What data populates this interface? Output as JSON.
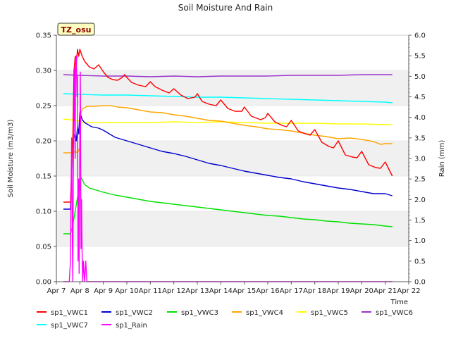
{
  "chart_data": {
    "type": "line",
    "title": "Soil Moisture And Rain",
    "xlabel": "Time",
    "ylabel": "Soil Moisture (m3/m3)",
    "y2label": "Rain (mm)",
    "site_badge": "TZ_osu",
    "x_tick_labels": [
      "Apr 7",
      "Apr 8",
      "Apr 9",
      "Apr 10",
      "Apr 11",
      "Apr 12",
      "Apr 13",
      "Apr 14",
      "Apr 15",
      "Apr 16",
      "Apr 17",
      "Apr 18",
      "Apr 19",
      "Apr 20",
      "Apr 21",
      "Apr 22"
    ],
    "xlim": [
      7,
      22
    ],
    "ylim": [
      0,
      0.35
    ],
    "y_ticks": [
      0.0,
      0.05,
      0.1,
      0.15,
      0.2,
      0.25,
      0.3,
      0.35
    ],
    "y_tick_labels": [
      "0.00",
      "0.05",
      "0.10",
      "0.15",
      "0.20",
      "0.25",
      "0.30",
      "0.35"
    ],
    "y2lim": [
      0,
      6.0
    ],
    "y2_ticks": [
      0,
      0.5,
      1.0,
      1.5,
      2.0,
      2.5,
      3.0,
      3.5,
      4.0,
      4.5,
      5.0,
      5.5,
      6.0
    ],
    "y2_tick_labels": [
      "0.0",
      "0.5",
      "1.0",
      "1.5",
      "2.0",
      "2.5",
      "3.0",
      "3.5",
      "4.0",
      "4.5",
      "5.0",
      "5.5",
      "6.0"
    ],
    "grid": "horizontal bands",
    "legend_position": "bottom",
    "series": [
      {
        "name": "sp1_VWC1",
        "color": "#ff0000",
        "axis": "left",
        "x": [
          7.3,
          7.6,
          7.7,
          7.75,
          7.8,
          7.85,
          7.9,
          7.95,
          8.0,
          8.05,
          8.1,
          8.2,
          8.4,
          8.6,
          8.8,
          9.0,
          9.2,
          9.4,
          9.6,
          9.8,
          9.9,
          10.0,
          10.2,
          10.5,
          10.8,
          11.0,
          11.2,
          11.5,
          11.8,
          12.0,
          12.3,
          12.6,
          12.9,
          13.0,
          13.2,
          13.5,
          13.8,
          14.0,
          14.3,
          14.6,
          14.9,
          15.0,
          15.3,
          15.7,
          15.9,
          16.0,
          16.3,
          16.6,
          16.8,
          17.0,
          17.3,
          17.6,
          17.8,
          18.0,
          18.3,
          18.6,
          18.8,
          19.0,
          19.3,
          19.6,
          19.8,
          20.0,
          20.3,
          20.6,
          20.8,
          21.0,
          21.3
        ],
        "y": [
          0.113,
          0.113,
          0.2,
          0.3,
          0.32,
          0.31,
          0.33,
          0.32,
          0.33,
          0.325,
          0.32,
          0.313,
          0.305,
          0.302,
          0.308,
          0.298,
          0.29,
          0.287,
          0.286,
          0.29,
          0.294,
          0.29,
          0.283,
          0.279,
          0.277,
          0.284,
          0.277,
          0.272,
          0.268,
          0.274,
          0.265,
          0.26,
          0.262,
          0.267,
          0.256,
          0.252,
          0.25,
          0.258,
          0.246,
          0.242,
          0.242,
          0.248,
          0.235,
          0.23,
          0.233,
          0.239,
          0.227,
          0.222,
          0.22,
          0.229,
          0.214,
          0.21,
          0.208,
          0.216,
          0.198,
          0.192,
          0.19,
          0.2,
          0.18,
          0.177,
          0.176,
          0.185,
          0.166,
          0.162,
          0.161,
          0.17,
          0.15
        ]
      },
      {
        "name": "sp1_VWC2",
        "color": "#0000cc",
        "axis": "left",
        "x": [
          7.3,
          7.6,
          7.7,
          7.75,
          7.8,
          7.85,
          7.9,
          7.95,
          8.0,
          8.05,
          8.1,
          8.2,
          8.5,
          8.8,
          9.0,
          9.5,
          10.0,
          10.5,
          11.0,
          11.5,
          12.0,
          12.5,
          13.0,
          13.5,
          14.0,
          14.5,
          15.0,
          15.5,
          16.0,
          16.5,
          17.0,
          17.5,
          18.0,
          18.5,
          19.0,
          19.5,
          20.0,
          20.5,
          21.0,
          21.3
        ],
        "y": [
          0.103,
          0.103,
          0.2,
          0.205,
          0.21,
          0.2,
          0.22,
          0.21,
          0.24,
          0.235,
          0.23,
          0.226,
          0.22,
          0.218,
          0.215,
          0.205,
          0.2,
          0.195,
          0.19,
          0.185,
          0.182,
          0.178,
          0.173,
          0.168,
          0.165,
          0.161,
          0.157,
          0.154,
          0.151,
          0.148,
          0.146,
          0.142,
          0.139,
          0.136,
          0.133,
          0.131,
          0.128,
          0.125,
          0.125,
          0.122
        ]
      },
      {
        "name": "sp1_VWC3",
        "color": "#00e000",
        "axis": "left",
        "x": [
          7.3,
          7.6,
          7.7,
          7.8,
          7.9,
          8.0,
          8.05,
          8.1,
          8.2,
          8.4,
          8.7,
          9.0,
          9.5,
          10.0,
          10.5,
          11.0,
          11.5,
          12.0,
          12.5,
          13.0,
          13.5,
          14.0,
          14.5,
          15.0,
          15.5,
          16.0,
          16.5,
          17.0,
          17.5,
          18.0,
          18.5,
          19.0,
          19.5,
          20.0,
          20.5,
          21.0,
          21.3
        ],
        "y": [
          0.068,
          0.068,
          0.08,
          0.1,
          0.12,
          0.13,
          0.148,
          0.145,
          0.138,
          0.133,
          0.13,
          0.127,
          0.123,
          0.12,
          0.117,
          0.114,
          0.112,
          0.11,
          0.108,
          0.106,
          0.104,
          0.102,
          0.1,
          0.098,
          0.096,
          0.094,
          0.093,
          0.091,
          0.089,
          0.088,
          0.086,
          0.085,
          0.083,
          0.082,
          0.081,
          0.079,
          0.078
        ]
      },
      {
        "name": "sp1_VWC4",
        "color": "#ffa500",
        "axis": "left",
        "x": [
          7.3,
          7.6,
          7.7,
          7.8,
          7.9,
          8.0,
          8.05,
          8.1,
          8.3,
          8.6,
          9.0,
          9.3,
          9.6,
          10.0,
          10.5,
          11.0,
          11.5,
          12.0,
          12.5,
          13.0,
          13.5,
          14.0,
          14.5,
          15.0,
          15.5,
          16.0,
          16.5,
          17.0,
          17.5,
          18.0,
          18.5,
          19.0,
          19.5,
          20.0,
          20.5,
          20.8,
          21.0,
          21.3
        ],
        "y": [
          0.183,
          0.183,
          0.183,
          0.185,
          0.183,
          0.19,
          0.24,
          0.245,
          0.249,
          0.249,
          0.25,
          0.25,
          0.248,
          0.247,
          0.244,
          0.241,
          0.24,
          0.237,
          0.235,
          0.232,
          0.229,
          0.228,
          0.225,
          0.222,
          0.22,
          0.217,
          0.216,
          0.214,
          0.211,
          0.208,
          0.206,
          0.203,
          0.204,
          0.202,
          0.199,
          0.195,
          0.196,
          0.196
        ]
      },
      {
        "name": "sp1_VWC5",
        "color": "#ffff00",
        "axis": "left",
        "x": [
          7.3,
          7.6,
          7.8,
          8.0,
          8.1,
          8.5,
          9.0,
          10.0,
          11.0,
          12.0,
          13.0,
          14.0,
          15.0,
          16.0,
          17.0,
          18.0,
          19.0,
          20.0,
          21.0,
          21.3
        ],
        "y": [
          0.231,
          0.23,
          0.229,
          0.228,
          0.226,
          0.226,
          0.226,
          0.226,
          0.226,
          0.227,
          0.226,
          0.227,
          0.226,
          0.225,
          0.225,
          0.225,
          0.224,
          0.224,
          0.223,
          0.223
        ]
      },
      {
        "name": "sp1_VWC6",
        "color": "#9933cc",
        "axis": "left",
        "x": [
          7.3,
          8.0,
          9.0,
          10.0,
          11.0,
          12.0,
          13.0,
          14.0,
          15.0,
          16.0,
          17.0,
          18.0,
          19.0,
          20.0,
          21.0,
          21.3
        ],
        "y": [
          0.294,
          0.293,
          0.292,
          0.292,
          0.291,
          0.292,
          0.291,
          0.292,
          0.292,
          0.292,
          0.293,
          0.293,
          0.293,
          0.294,
          0.294,
          0.294
        ]
      },
      {
        "name": "sp1_VWC7",
        "color": "#00ffff",
        "axis": "left",
        "x": [
          7.3,
          8.0,
          9.0,
          10.0,
          11.0,
          12.0,
          13.0,
          14.0,
          15.0,
          16.0,
          17.0,
          18.0,
          19.0,
          20.0,
          21.0,
          21.3
        ],
        "y": [
          0.267,
          0.266,
          0.265,
          0.265,
          0.264,
          0.263,
          0.262,
          0.262,
          0.261,
          0.26,
          0.259,
          0.258,
          0.257,
          0.256,
          0.255,
          0.254
        ]
      },
      {
        "name": "sp1_Rain",
        "color": "#ff00ff",
        "axis": "right",
        "x": [
          7.3,
          7.55,
          7.6,
          7.62,
          7.65,
          7.68,
          7.7,
          7.72,
          7.75,
          7.78,
          7.8,
          7.82,
          7.85,
          7.88,
          7.9,
          7.92,
          7.95,
          7.97,
          8.0,
          8.02,
          8.05,
          8.07,
          8.1,
          8.12,
          8.15,
          8.2,
          8.25,
          8.3,
          9.0,
          10.0,
          12.0,
          14.0,
          16.0,
          18.0,
          20.0,
          21.3
        ],
        "y": [
          0.0,
          0.0,
          0.5,
          2.0,
          3.5,
          1.0,
          0.0,
          2.5,
          4.0,
          5.2,
          3.0,
          5.4,
          5.5,
          4.5,
          5.0,
          0.5,
          2.5,
          0.2,
          3.5,
          5.1,
          0.8,
          2.0,
          0.5,
          0.0,
          0.5,
          0.0,
          0.5,
          0.0,
          0.0,
          0.0,
          0.0,
          0.0,
          0.0,
          0.0,
          0.0,
          0.0
        ]
      }
    ]
  }
}
